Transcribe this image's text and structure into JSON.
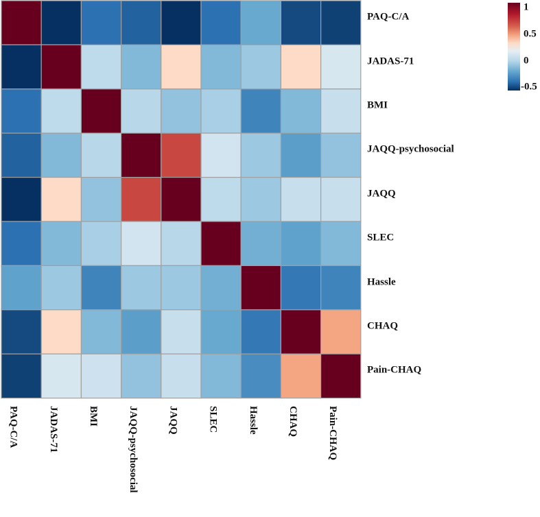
{
  "chart_data": {
    "type": "heatmap",
    "title": "",
    "rows": [
      "PAQ-C/A",
      "JADAS-71",
      "BMI",
      "JAQQ-psychosocial",
      "JAQQ",
      "SLEC",
      "Hassle",
      "CHAQ",
      "Pain-CHAQ"
    ],
    "columns": [
      "PAQ-C/A",
      "JADAS-71",
      "BMI",
      "JAQQ-psychosocial",
      "JAQQ",
      "SLEC",
      "Hassle",
      "CHAQ",
      "Pain-CHAQ"
    ],
    "values": [
      [
        1,
        -0.5,
        -0.3,
        -0.35,
        -0.55,
        -0.3,
        -0.15,
        -0.42,
        -0.45
      ],
      [
        -0.5,
        1,
        0.02,
        -0.1,
        0.3,
        -0.1,
        -0.05,
        0.3,
        0.1
      ],
      [
        -0.3,
        0.02,
        1,
        0.0,
        -0.07,
        -0.03,
        -0.25,
        -0.1,
        0.05
      ],
      [
        -0.35,
        -0.1,
        0.0,
        1,
        0.75,
        0.08,
        -0.05,
        -0.18,
        -0.07
      ],
      [
        -0.55,
        0.3,
        -0.07,
        0.75,
        1,
        0.02,
        -0.05,
        0.05,
        0.05
      ],
      [
        -0.3,
        -0.1,
        -0.03,
        0.08,
        0.0,
        1,
        -0.13,
        -0.17,
        -0.1
      ],
      [
        -0.17,
        -0.05,
        -0.25,
        -0.05,
        -0.05,
        -0.13,
        1,
        -0.28,
        -0.25
      ],
      [
        -0.42,
        0.3,
        -0.1,
        -0.18,
        0.05,
        -0.15,
        -0.28,
        1,
        0.45
      ],
      [
        -0.45,
        0.1,
        0.07,
        -0.07,
        0.05,
        -0.1,
        -0.23,
        0.45,
        1
      ]
    ],
    "color_range": [
      -0.5,
      1
    ],
    "legend": {
      "placement": "top-right",
      "ticks": [
        "1",
        "0.5",
        "0",
        "-0.5"
      ]
    },
    "colorscale": [
      "#053061",
      "#2c72b2",
      "#67a9cf",
      "#b8d8ea",
      "#e6eef3",
      "#fddbc7",
      "#f4a582",
      "#c94741",
      "#67001f"
    ]
  }
}
